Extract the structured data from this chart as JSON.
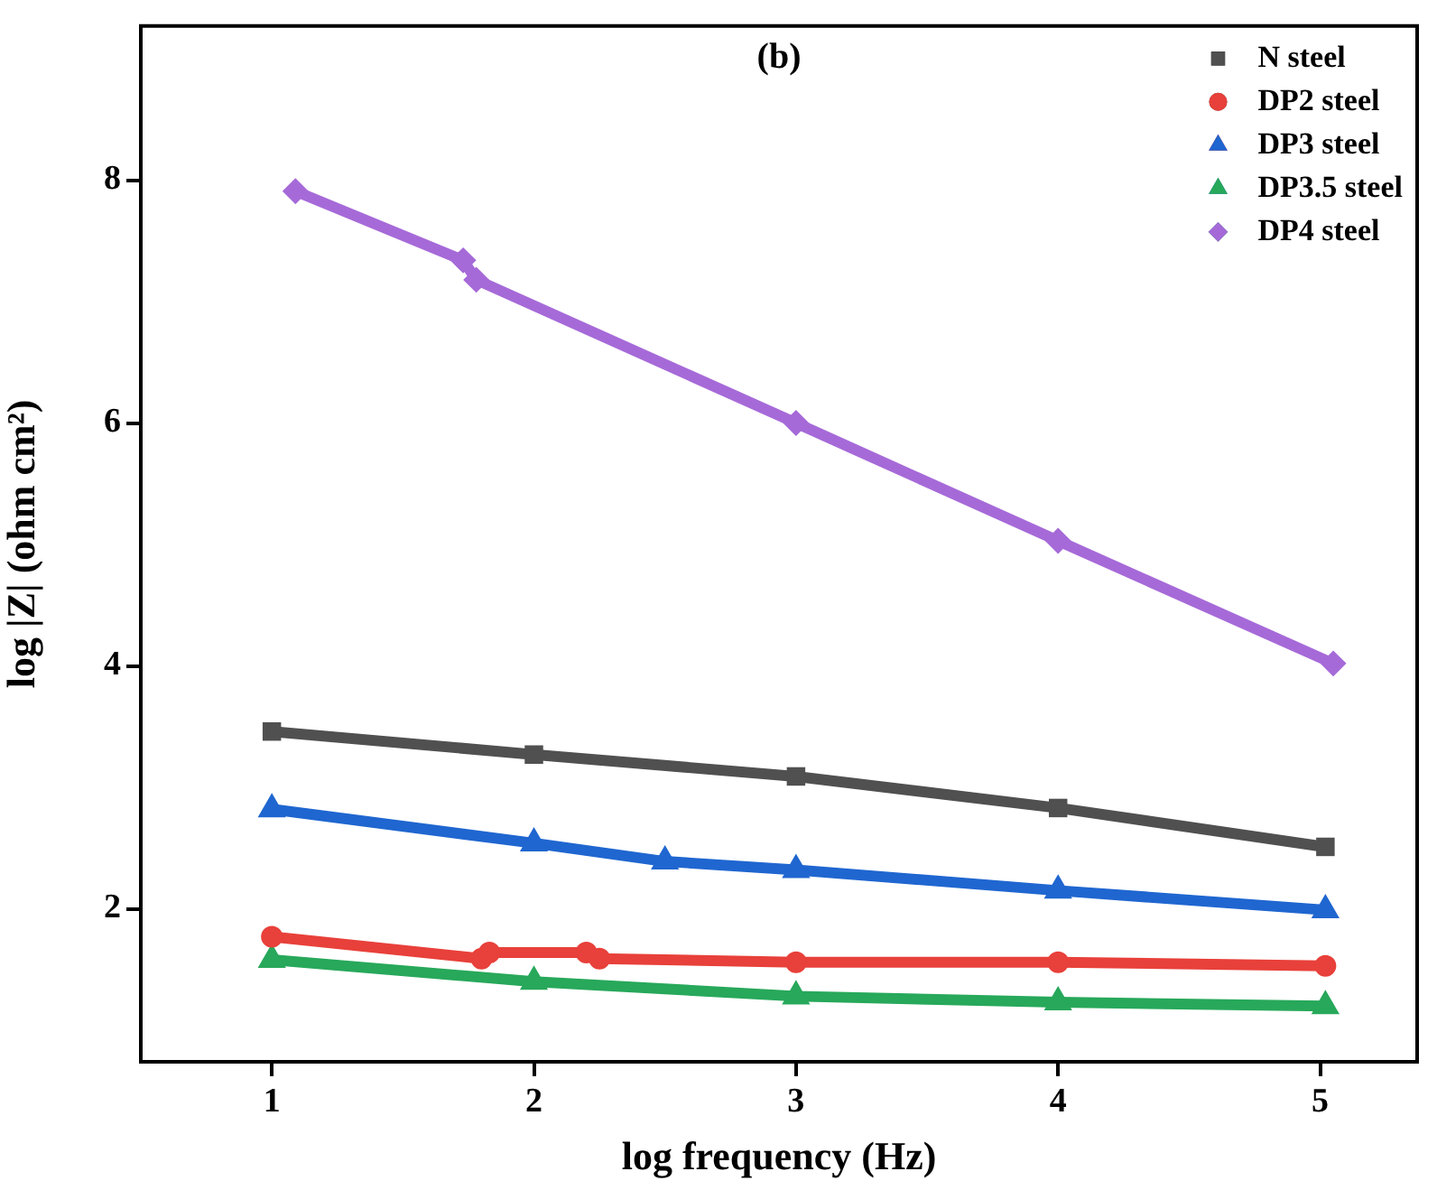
{
  "chart_data": {
    "type": "line",
    "title": "(b)",
    "xlabel": "log frequency (Hz)",
    "ylabel": "log |Z| (ohm cm²)",
    "xlim": [
      0.5,
      5.37
    ],
    "ylim": [
      0.74,
      9.27
    ],
    "xticks": [
      1,
      2,
      3,
      4,
      5
    ],
    "yticks": [
      2,
      4,
      6,
      8
    ],
    "grid": false,
    "legend": "top right",
    "series": [
      {
        "name": "N steel",
        "color": "#505050",
        "marker": "square",
        "x": [
          1,
          2,
          3,
          4,
          5.02
        ],
        "values": [
          3.46,
          3.27,
          3.09,
          2.83,
          2.51
        ]
      },
      {
        "name": "DP2 steel",
        "color": "#e8403a",
        "marker": "circle",
        "x": [
          1,
          1.8,
          1.83,
          2.2,
          2.25,
          3,
          4,
          5.02
        ],
        "values": [
          1.77,
          1.59,
          1.64,
          1.64,
          1.59,
          1.56,
          1.56,
          1.53
        ]
      },
      {
        "name": "DP3 steel",
        "color": "#1f66d0",
        "marker": "triangle",
        "x": [
          1,
          2,
          2.5,
          3,
          4,
          5.02
        ],
        "values": [
          2.82,
          2.54,
          2.39,
          2.32,
          2.15,
          1.99
        ]
      },
      {
        "name": "DP3.5 steel",
        "color": "#27a85a",
        "marker": "triangle",
        "x": [
          1,
          2,
          3,
          4,
          5.02
        ],
        "values": [
          1.58,
          1.4,
          1.28,
          1.23,
          1.2
        ]
      },
      {
        "name": "DP4 steel",
        "color": "#a66ad8",
        "marker": "diamond",
        "x": [
          1.09,
          1.73,
          1.78,
          3,
          4,
          5.05
        ],
        "values": [
          7.91,
          7.34,
          7.18,
          6.0,
          5.03,
          4.02
        ]
      }
    ]
  }
}
